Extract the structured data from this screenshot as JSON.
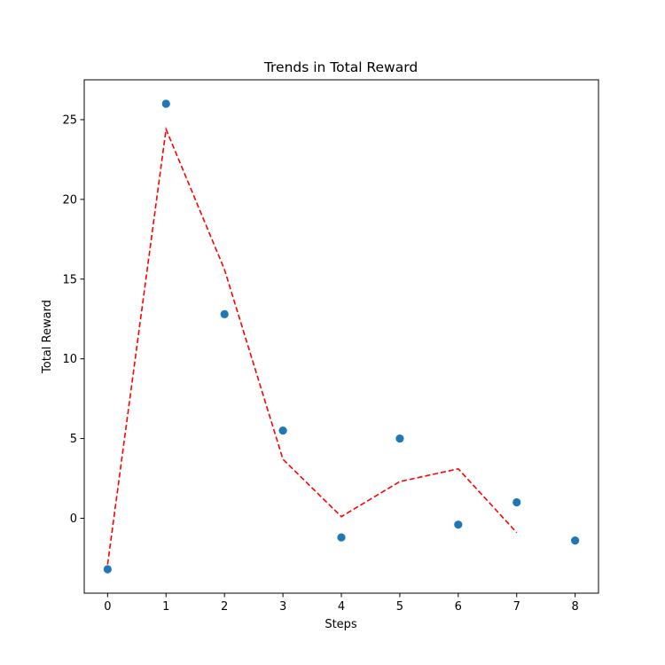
{
  "chart_data": {
    "type": "scatter",
    "title": "Trends in Total Reward",
    "xlabel": "Steps",
    "ylabel": "Total Reward",
    "xlim": [
      -0.4,
      8.4
    ],
    "ylim": [
      -4.7,
      27.5
    ],
    "xticks": [
      0,
      1,
      2,
      3,
      4,
      5,
      6,
      7,
      8
    ],
    "yticks": [
      0,
      5,
      10,
      15,
      20,
      25
    ],
    "grid": false,
    "legend": "none",
    "series": [
      {
        "kind": "scatter",
        "color": "#1f77b4",
        "x": [
          0,
          1,
          2,
          3,
          4,
          5,
          6,
          7,
          8
        ],
        "y": [
          -3.2,
          26.0,
          12.8,
          5.5,
          -1.2,
          5.0,
          -0.4,
          1.0,
          -1.4
        ]
      },
      {
        "kind": "line",
        "style": "dashed",
        "color": "#ff0000",
        "x": [
          0,
          1,
          2,
          3,
          4,
          5,
          6,
          7
        ],
        "y": [
          -2.9,
          24.4,
          15.6,
          3.7,
          0.1,
          2.3,
          3.1,
          -0.9
        ]
      }
    ]
  }
}
